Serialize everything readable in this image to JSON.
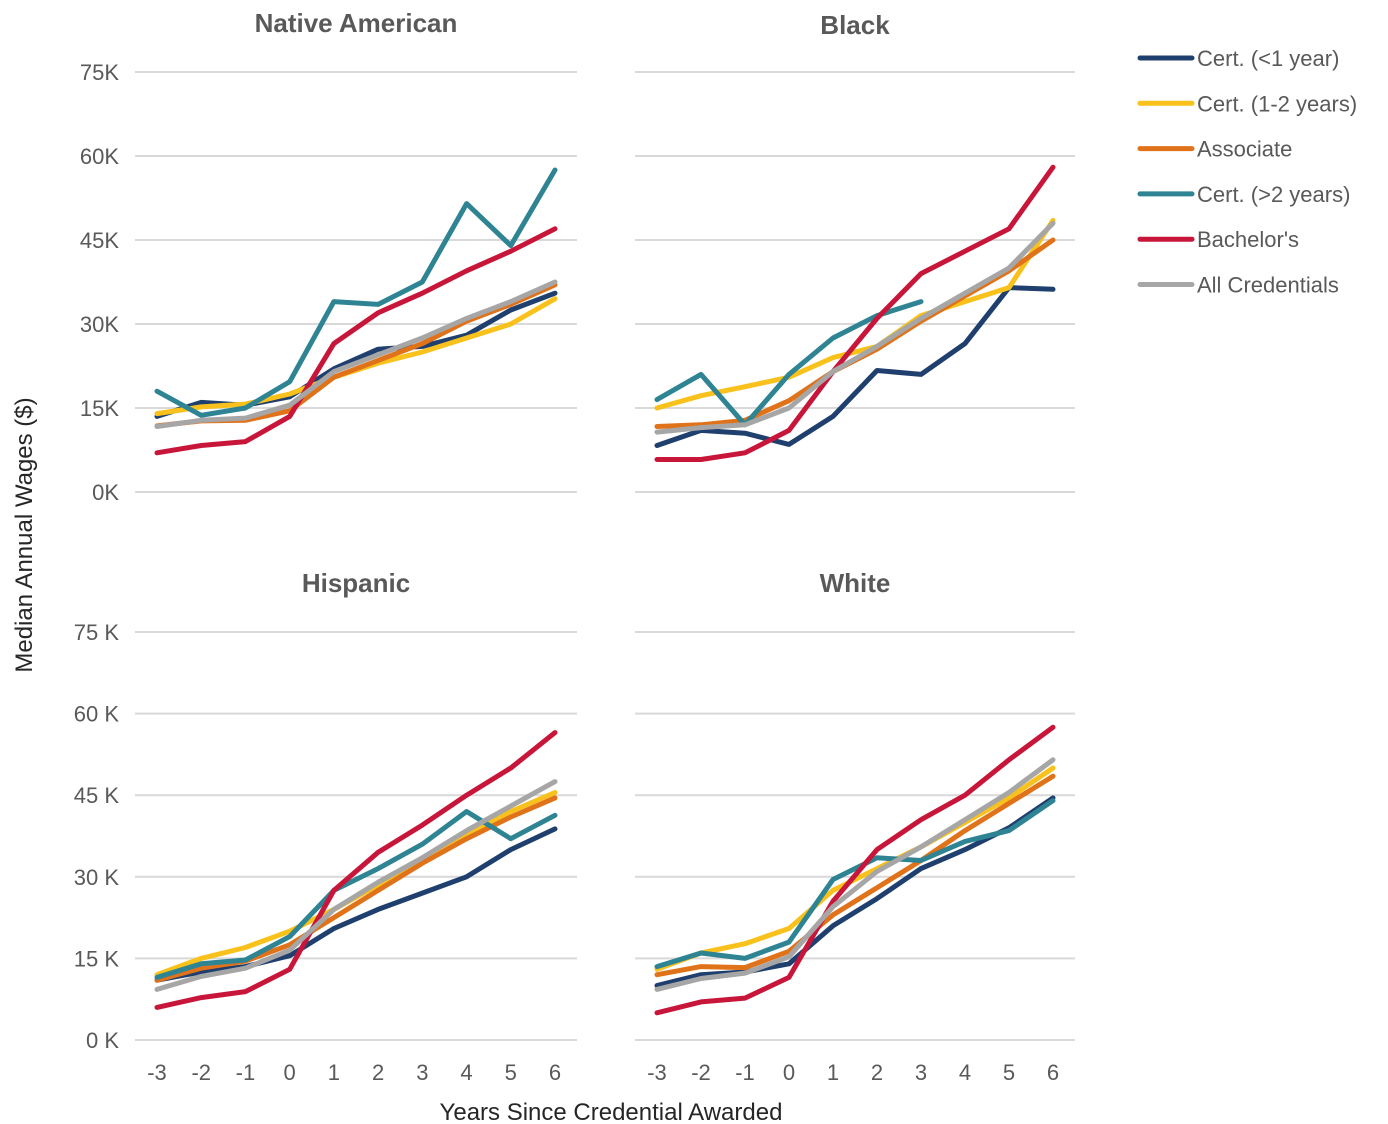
{
  "y_axis_label": "Median Annual Wages ($)",
  "x_axis_label": "Years Since Credential Awarded",
  "legend": [
    {
      "name": "Cert. (<1 year)",
      "color": "#1f3f6e"
    },
    {
      "name": "Cert. (1-2 years)",
      "color": "#f9c11b"
    },
    {
      "name": "Associate",
      "color": "#e07219"
    },
    {
      "name": "Cert. (>2 years)",
      "color": "#2f8494"
    },
    {
      "name": "Bachelor's",
      "color": "#c8163a"
    },
    {
      "name": "All Credentials",
      "color": "#a6a6a6"
    }
  ],
  "chart_data": [
    {
      "type": "line",
      "title": "Native American",
      "x": [
        -3,
        -2,
        -1,
        0,
        1,
        2,
        3,
        4,
        5,
        6
      ],
      "yticks": [
        "0K",
        "15K",
        "30K",
        "45K",
        "60K",
        "75K"
      ],
      "show_xticks": false,
      "ylim": [
        0,
        75000
      ],
      "series": [
        {
          "name": "Cert. (<1 year)",
          "values": [
            13500,
            16000,
            15500,
            17000,
            22000,
            25500,
            26000,
            28000,
            32500,
            35500
          ]
        },
        {
          "name": "Cert. (1-2 years)",
          "values": [
            14000,
            15200,
            15700,
            17500,
            20500,
            23000,
            25000,
            27500,
            30000,
            34500
          ]
        },
        {
          "name": "Associate",
          "values": [
            11800,
            12700,
            12800,
            14500,
            20500,
            23500,
            26500,
            30500,
            33500,
            37000
          ]
        },
        {
          "name": "Cert. (>2 years)",
          "values": [
            18000,
            13700,
            15000,
            19700,
            34000,
            33500,
            37500,
            51500,
            44000,
            57500
          ]
        },
        {
          "name": "Bachelor's",
          "values": [
            7000,
            8300,
            9000,
            13500,
            26500,
            32000,
            35500,
            39500,
            43000,
            47000
          ]
        },
        {
          "name": "All Credentials",
          "values": [
            11700,
            12800,
            13200,
            15500,
            21500,
            24500,
            27500,
            31000,
            34000,
            37500
          ]
        }
      ]
    },
    {
      "type": "line",
      "title": "Black",
      "x": [
        -3,
        -2,
        -1,
        0,
        1,
        2,
        3,
        4,
        5,
        6
      ],
      "yticks": [
        "0K",
        "15K",
        "30K",
        "45K",
        "60K",
        "75K"
      ],
      "show_xticks": false,
      "show_yticks": false,
      "ylim": [
        0,
        75000
      ],
      "series": [
        {
          "name": "Cert. (<1 year)",
          "values": [
            8300,
            11000,
            10500,
            8500,
            13500,
            21700,
            21000,
            26500,
            36500,
            36200
          ]
        },
        {
          "name": "Cert. (1-2 years)",
          "values": [
            15000,
            17200,
            18800,
            20500,
            24000,
            26000,
            31500,
            34000,
            36500,
            48500
          ]
        },
        {
          "name": "Associate",
          "values": [
            11700,
            12000,
            12800,
            16300,
            21500,
            25500,
            30500,
            35000,
            39500,
            45000
          ]
        },
        {
          "name": "Cert. (>2 years)",
          "values": [
            16500,
            21000,
            12000,
            21000,
            27500,
            31500,
            34000,
            null,
            null,
            null
          ]
        },
        {
          "name": "Bachelor's",
          "values": [
            5800,
            5800,
            7000,
            11000,
            21500,
            31000,
            39000,
            43000,
            47000,
            58000
          ]
        },
        {
          "name": "All Credentials",
          "values": [
            10700,
            11500,
            12000,
            15000,
            21500,
            26000,
            31000,
            35500,
            40000,
            48000
          ]
        }
      ]
    },
    {
      "type": "line",
      "title": "Hispanic",
      "x": [
        -3,
        -2,
        -1,
        0,
        1,
        2,
        3,
        4,
        5,
        6
      ],
      "yticks": [
        "0 K",
        "15 K",
        "30 K",
        "45 K",
        "60 K",
        "75 K"
      ],
      "show_xticks": true,
      "ylim": [
        0,
        75000
      ],
      "series": [
        {
          "name": "Cert. (<1 year)",
          "values": [
            11000,
            12500,
            13500,
            15500,
            20500,
            24000,
            27000,
            30000,
            35000,
            38800
          ]
        },
        {
          "name": "Cert. (1-2 years)",
          "values": [
            12000,
            15000,
            17000,
            20000,
            24000,
            28500,
            33000,
            37500,
            42000,
            45500
          ]
        },
        {
          "name": "Associate",
          "values": [
            11000,
            13200,
            14500,
            17500,
            22500,
            27500,
            32500,
            37000,
            41000,
            44500
          ]
        },
        {
          "name": "Cert. (>2 years)",
          "values": [
            11500,
            14000,
            14700,
            19000,
            27500,
            31500,
            36000,
            42000,
            37000,
            41300
          ]
        },
        {
          "name": "Bachelor's",
          "values": [
            6000,
            7800,
            8900,
            13000,
            27500,
            34500,
            39500,
            45000,
            50000,
            56500
          ]
        },
        {
          "name": "All Credentials",
          "values": [
            9300,
            11700,
            13200,
            16500,
            24000,
            29000,
            33500,
            38500,
            43000,
            47500
          ]
        }
      ]
    },
    {
      "type": "line",
      "title": "White",
      "x": [
        -3,
        -2,
        -1,
        0,
        1,
        2,
        3,
        4,
        5,
        6
      ],
      "yticks": [
        "0 K",
        "15 K",
        "30 K",
        "45 K",
        "60 K",
        "75 K"
      ],
      "show_xticks": true,
      "show_yticks": false,
      "ylim": [
        0,
        75000
      ],
      "series": [
        {
          "name": "Cert. (<1 year)",
          "values": [
            10000,
            12000,
            12500,
            14000,
            21000,
            26000,
            31500,
            35000,
            39000,
            44500
          ]
        },
        {
          "name": "Cert. (1-2 years)",
          "values": [
            13000,
            16000,
            17700,
            20500,
            27500,
            31500,
            35500,
            40000,
            44500,
            50000
          ]
        },
        {
          "name": "Associate",
          "values": [
            12000,
            13500,
            13300,
            16300,
            23000,
            28000,
            33000,
            38500,
            43500,
            48500
          ]
        },
        {
          "name": "Cert. (>2 years)",
          "values": [
            13500,
            16000,
            15000,
            18000,
            29500,
            33500,
            33000,
            36500,
            38500,
            44000
          ]
        },
        {
          "name": "Bachelor's",
          "values": [
            5000,
            7000,
            7700,
            11500,
            25500,
            35000,
            40500,
            45000,
            51500,
            57500
          ]
        },
        {
          "name": "All Credentials",
          "values": [
            9300,
            11300,
            12300,
            15300,
            24500,
            31000,
            35500,
            40500,
            45500,
            51500
          ]
        }
      ]
    }
  ]
}
